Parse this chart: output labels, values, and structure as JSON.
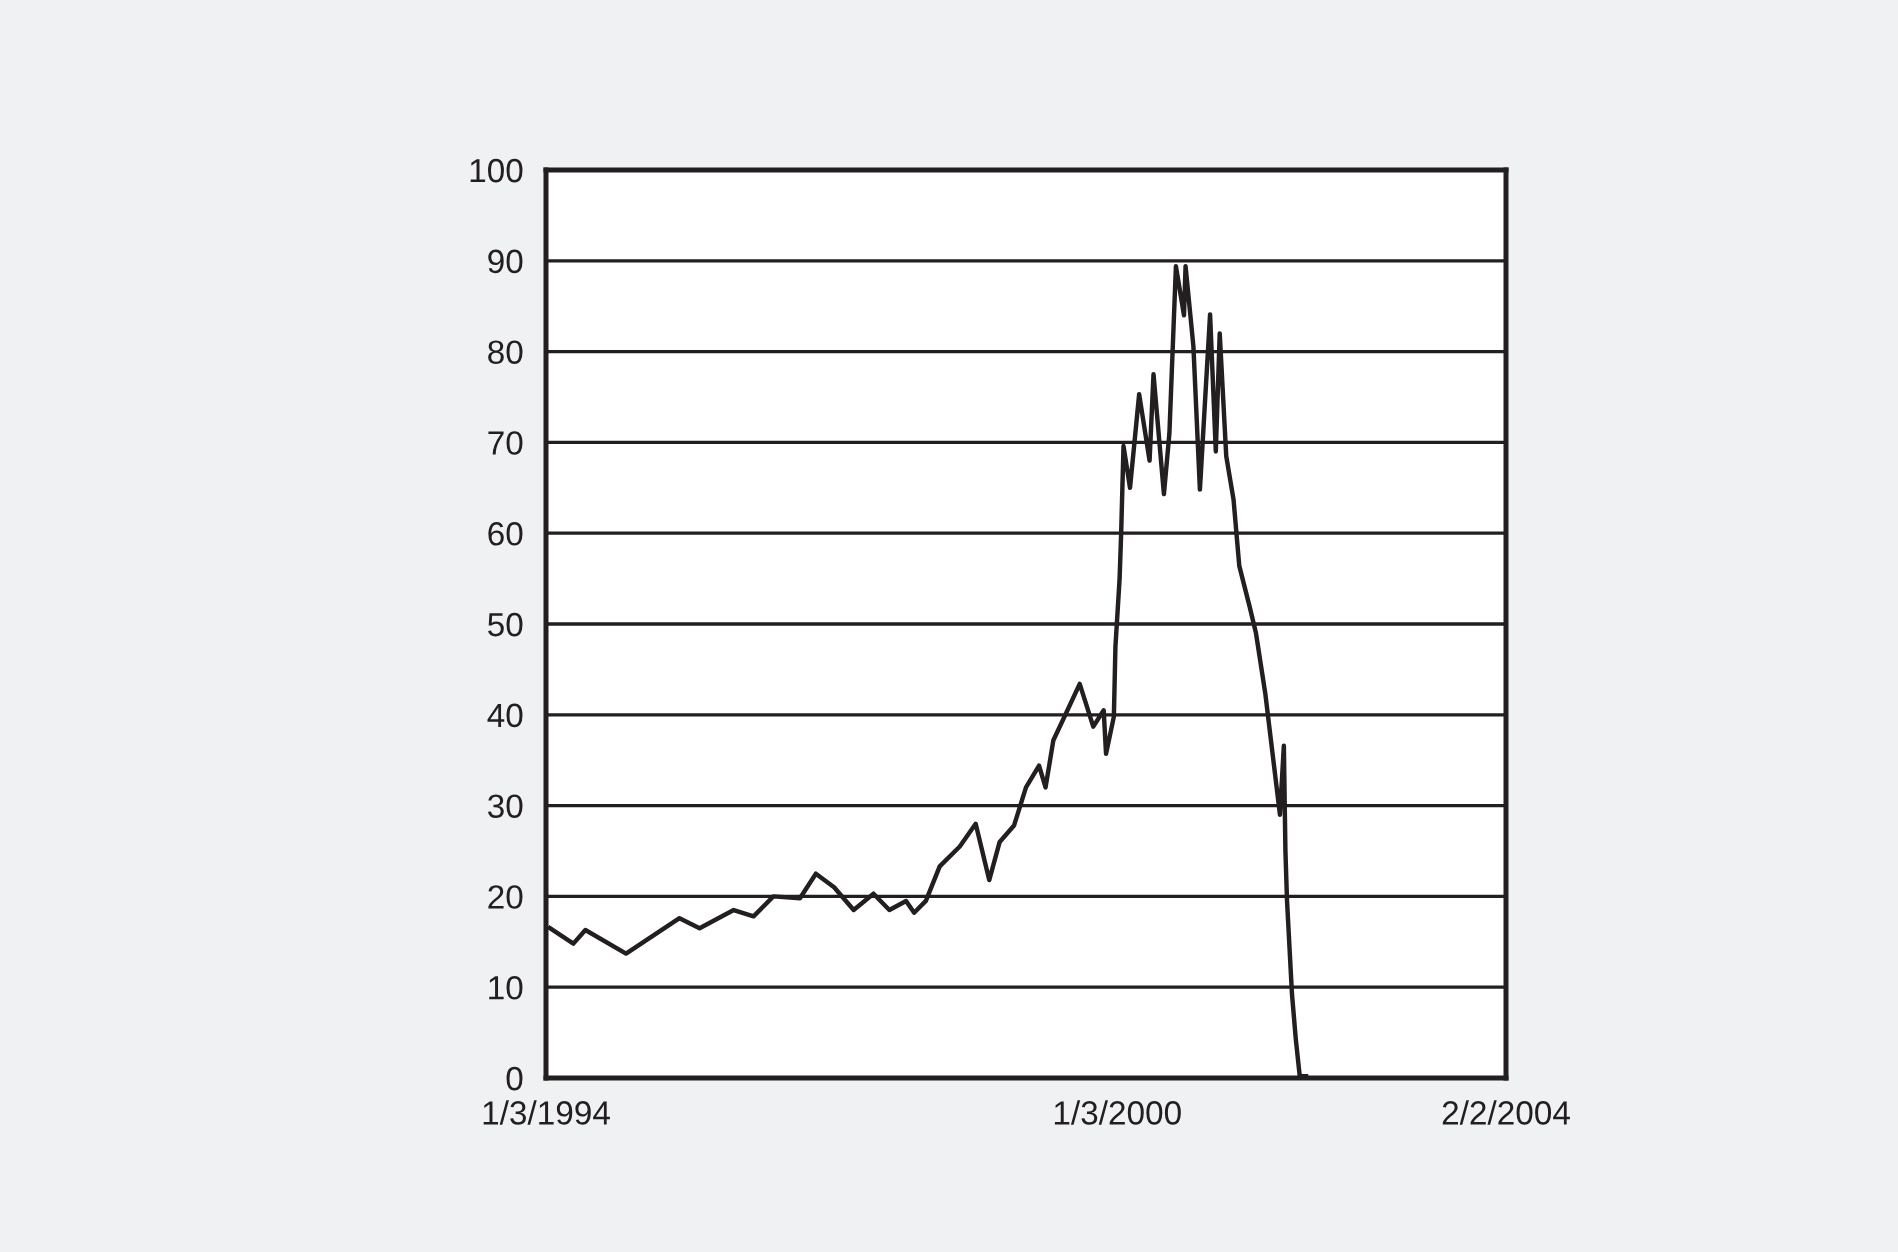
{
  "chart_data": {
    "type": "line",
    "x": [
      "1994-01-18",
      "1994-04-18",
      "1994-06-03",
      "1994-11-06",
      "1995-05-30",
      "1995-08-15",
      "1995-12-24",
      "1996-03-09",
      "1996-05-24",
      "1996-09-03",
      "1996-11-03",
      "1997-01-12",
      "1997-03-28",
      "1997-06-12",
      "1997-08-12",
      "1997-10-15",
      "1997-11-15",
      "1997-12-30",
      "1998-02-21",
      "1998-05-09",
      "1998-07-09",
      "1998-08-30",
      "1998-10-09",
      "1998-12-03",
      "1999-01-18",
      "1999-03-09",
      "1999-04-03",
      "1999-05-03",
      "1999-06-18",
      "1999-08-12",
      "1999-10-03",
      "1999-11-12",
      "1999-11-21",
      "1999-12-21",
      "1999-12-27",
      "2000-01-12",
      "2000-01-18",
      "2000-01-27",
      "2000-02-21",
      "2000-03-27",
      "2000-05-06",
      "2000-05-21",
      "2000-06-30",
      "2000-07-21",
      "2000-08-15",
      "2000-09-15",
      "2000-09-21",
      "2000-10-21",
      "2000-11-15",
      "2000-12-24",
      "2001-01-15",
      "2001-01-30",
      "2001-02-24",
      "2001-03-24",
      "2001-04-15",
      "2001-05-24",
      "2001-06-18",
      "2001-07-24",
      "2001-09-18",
      "2001-10-03",
      "2001-10-09",
      "2001-10-15",
      "2001-11-03",
      "2001-11-18",
      "2001-12-03",
      "2001-12-27"
    ],
    "series": [
      {
        "color": "#231f20",
        "values": [
          16.5,
          14.8,
          16.3,
          13.7,
          17.6,
          16.5,
          18.5,
          17.8,
          20,
          19.8,
          22.5,
          21,
          18.5,
          20.3,
          18.5,
          19.5,
          18.2,
          19.5,
          23.3,
          25.5,
          28,
          21.8,
          26,
          27.8,
          32,
          34.4,
          32,
          37.2,
          40,
          43.4,
          38.7,
          40.5,
          35.7,
          39.8,
          47.5,
          55,
          60,
          69.6,
          65,
          75.3,
          68,
          77.5,
          64.3,
          71,
          89.4,
          84,
          89.4,
          80.6,
          64.8,
          84.1,
          69,
          82,
          68.5,
          63.7,
          56.4,
          52,
          49,
          42.3,
          29,
          36.6,
          25,
          19.6,
          9.3,
          4.2,
          0.2,
          0.2
        ]
      }
    ],
    "xlim": [
      "1994-01-03",
      "2004-02-02"
    ],
    "xticks": [
      {
        "value": "1994-01-03",
        "label": "1/3/1994"
      },
      {
        "value": "2000-01-03",
        "label": "1/3/2000"
      },
      {
        "value": "2004-02-02",
        "label": "2/2/2004"
      }
    ],
    "ylim": [
      0,
      100
    ],
    "yticks": [
      0,
      10,
      20,
      30,
      40,
      50,
      60,
      70,
      80,
      90,
      100
    ],
    "grid": "y",
    "marker": "none",
    "line_style": "solid"
  }
}
